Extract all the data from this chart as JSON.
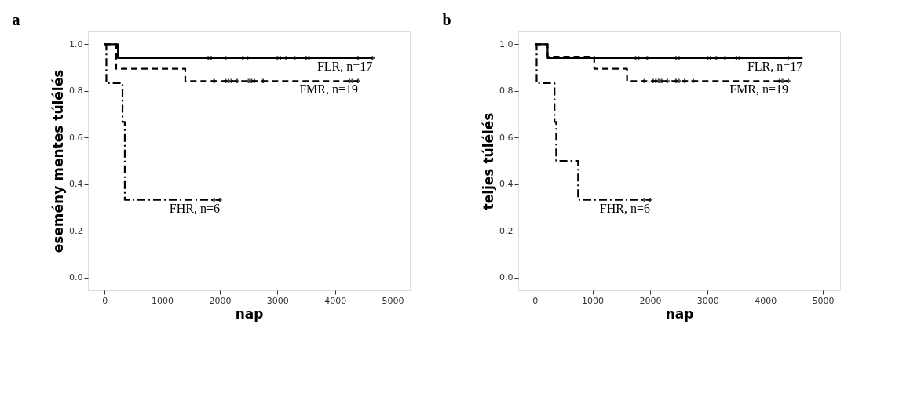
{
  "chart_data": [
    {
      "type": "step",
      "title": "a",
      "xlabel": "nap",
      "ylabel": "esemény mentes túlélés",
      "xlim": [
        -290,
        5300
      ],
      "ylim": [
        -0.055,
        1.055
      ],
      "xticks": [
        0,
        1000,
        2000,
        3000,
        4000,
        5000
      ],
      "yticks": [
        {
          "value": 0,
          "label": "0.0"
        },
        {
          "value": 0.2,
          "label": "0.2"
        },
        {
          "value": 0.4,
          "label": "0.4"
        },
        {
          "value": 0.6,
          "label": "0.6"
        },
        {
          "value": 0.8,
          "label": "0.8"
        },
        {
          "value": 1,
          "label": "1.0"
        }
      ],
      "grid": false,
      "legend": false,
      "series": [
        {
          "name": "FLR, n=17",
          "type": "step",
          "line_style": "solid",
          "color": "#000000",
          "x": [
            0,
            230,
            4650
          ],
          "values": [
            1,
            0.941,
            0.941
          ]
        },
        {
          "name": "FMR, n=19",
          "type": "step",
          "line_style": "dashed",
          "color": "#000000",
          "x": [
            0,
            200,
            1400,
            4400
          ],
          "values": [
            1,
            0.895,
            0.842,
            0.842
          ]
        },
        {
          "name": "FHR, n=6",
          "type": "step",
          "line_style": "dashdot",
          "color": "#000000",
          "x": [
            0,
            30,
            310,
            350,
            2000
          ],
          "values": [
            1,
            0.833,
            0.667,
            0.333,
            0.333
          ]
        },
        {
          "type": "scatter",
          "marker": "cross",
          "color": "#000000",
          "x": [
            1800,
            1850,
            2100,
            2400,
            2480,
            3000,
            3050,
            3150,
            3300,
            3500,
            3550,
            4400,
            4650
          ],
          "values": [
            0.941,
            0.941,
            0.941,
            0.941,
            0.941,
            0.941,
            0.941,
            0.941,
            0.941,
            0.941,
            0.941,
            0.941,
            0.941
          ]
        },
        {
          "type": "scatter",
          "marker": "cross",
          "color": "#000000",
          "x": [
            1900,
            2100,
            2150,
            2200,
            2300,
            2500,
            2550,
            2600,
            2750,
            4250,
            4300,
            4400
          ],
          "values": [
            0.842,
            0.842,
            0.842,
            0.842,
            0.842,
            0.842,
            0.842,
            0.842,
            0.842,
            0.842,
            0.842,
            0.842
          ]
        },
        {
          "type": "scatter",
          "marker": "cross",
          "color": "#000000",
          "x": [
            1900,
            2000
          ],
          "values": [
            0.333,
            0.333
          ]
        }
      ]
    },
    {
      "type": "step",
      "title": "b",
      "xlabel": "nap",
      "ylabel": "teljes túlélés",
      "xlim": [
        -290,
        5300
      ],
      "ylim": [
        -0.055,
        1.055
      ],
      "xticks": [
        0,
        1000,
        2000,
        3000,
        4000,
        5000
      ],
      "yticks": [
        {
          "value": 0,
          "label": "0.0"
        },
        {
          "value": 0.2,
          "label": "0.2"
        },
        {
          "value": 0.4,
          "label": "0.4"
        },
        {
          "value": 0.6,
          "label": "0.6"
        },
        {
          "value": 0.8,
          "label": "0.8"
        },
        {
          "value": 1,
          "label": "1.0"
        }
      ],
      "grid": false,
      "legend": false,
      "series": [
        {
          "name": "FLR, n=17",
          "type": "step",
          "line_style": "solid",
          "color": "#000000",
          "x": [
            0,
            220,
            4650
          ],
          "values": [
            1,
            0.941,
            0.941
          ]
        },
        {
          "name": "FMR, n=19",
          "type": "step",
          "line_style": "dashed",
          "color": "#000000",
          "x": [
            0,
            220,
            1030,
            1600,
            4400
          ],
          "values": [
            1,
            0.947,
            0.895,
            0.842,
            0.842
          ]
        },
        {
          "name": "FHR, n=6",
          "type": "step",
          "line_style": "dashdot",
          "color": "#000000",
          "x": [
            0,
            30,
            340,
            370,
            750,
            2000
          ],
          "values": [
            1,
            0.833,
            0.667,
            0.5,
            0.333,
            0.333
          ]
        },
        {
          "type": "scatter",
          "marker": "cross",
          "color": "#000000",
          "x": [
            1750,
            1800,
            1950,
            2450,
            2500,
            3000,
            3050,
            3150,
            3300,
            3500,
            3550,
            4400
          ],
          "values": [
            0.941,
            0.941,
            0.941,
            0.941,
            0.941,
            0.941,
            0.941,
            0.941,
            0.941,
            0.941,
            0.941,
            0.941
          ]
        },
        {
          "type": "scatter",
          "marker": "cross",
          "color": "#000000",
          "x": [
            1900,
            2050,
            2100,
            2150,
            2200,
            2300,
            2450,
            2500,
            2600,
            2750,
            4250,
            4300,
            4400
          ],
          "values": [
            0.842,
            0.842,
            0.842,
            0.842,
            0.842,
            0.842,
            0.842,
            0.842,
            0.842,
            0.842,
            0.842,
            0.842,
            0.842
          ]
        },
        {
          "type": "scatter",
          "marker": "cross",
          "color": "#000000",
          "x": [
            1900,
            2000
          ],
          "values": [
            0.333,
            0.333
          ]
        }
      ]
    }
  ]
}
